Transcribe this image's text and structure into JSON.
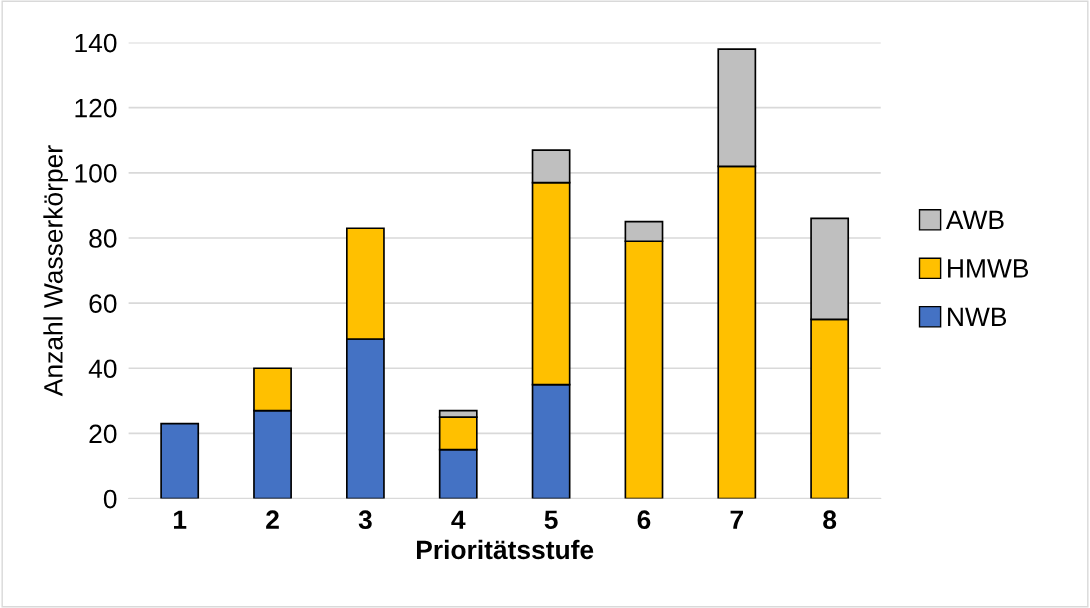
{
  "chart_data": {
    "type": "bar",
    "stacked": true,
    "xlabel": "Prioritätsstufe",
    "ylabel": "Anzahl Wasserkörper",
    "categories": [
      "1",
      "2",
      "3",
      "4",
      "5",
      "6",
      "7",
      "8"
    ],
    "series": [
      {
        "name": "NWB",
        "color": "#4472c4",
        "values": [
          23,
          27,
          49,
          15,
          35,
          null,
          null,
          null
        ]
      },
      {
        "name": "HMWB",
        "color": "#ffc000",
        "values": [
          null,
          13,
          34,
          10,
          62,
          79,
          102,
          55
        ]
      },
      {
        "name": "AWB",
        "color": "#bfbfbf",
        "values": [
          null,
          null,
          null,
          2,
          10,
          6,
          36,
          31
        ]
      }
    ],
    "ylim": [
      0,
      140
    ],
    "yticks": [
      0,
      20,
      40,
      60,
      80,
      100,
      120,
      140
    ],
    "grid": "y",
    "legend": "right"
  }
}
